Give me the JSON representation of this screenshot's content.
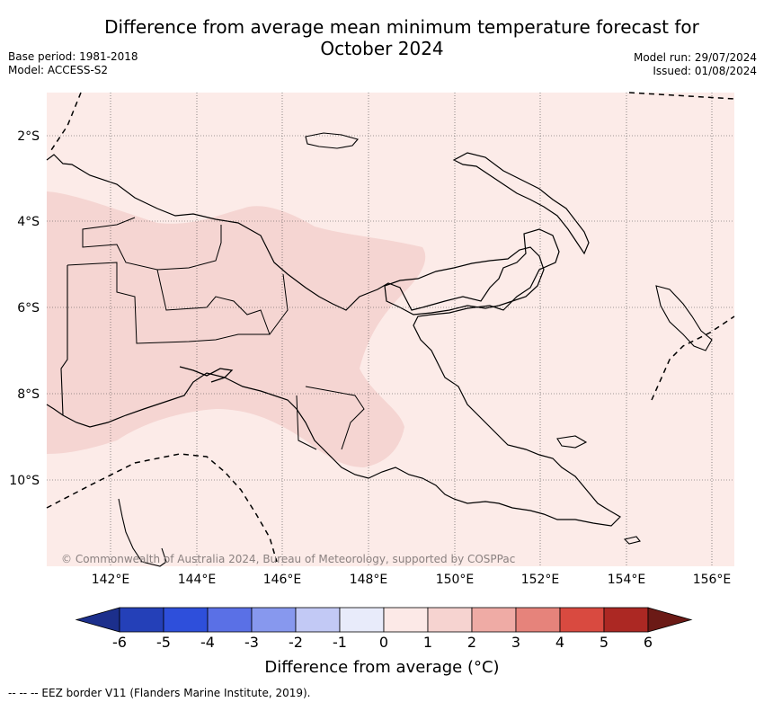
{
  "title_line1": "Difference from average mean minimum temperature forecast for",
  "title_line2": "October 2024",
  "base_period": "Base period: 1981-2018",
  "model": "Model: ACCESS-S2",
  "model_run": "Model run: 29/07/2024",
  "issued": "Issued: 01/08/2024",
  "copyright": "© Commonwealth of Australia 2024, Bureau of Meteorology, supported by COSPPac",
  "lat_labels": [
    "2°S",
    "4°S",
    "6°S",
    "8°S",
    "10°S"
  ],
  "lon_labels": [
    "142°E",
    "144°E",
    "146°E",
    "148°E",
    "150°E",
    "152°E",
    "154°E",
    "156°E"
  ],
  "colorbar": {
    "ticks": [
      "-6",
      "-5",
      "-4",
      "-3",
      "-2",
      "-1",
      "0",
      "1",
      "2",
      "3",
      "4",
      "5",
      "6"
    ],
    "colors": [
      "#1c2f8c",
      "#2440b8",
      "#2e4fdb",
      "#5a70e6",
      "#8798ee",
      "#c2c9f5",
      "#e8ebfa",
      "#fce9e7",
      "#f6d3d0",
      "#efaba5",
      "#e6837b",
      "#d94a40",
      "#ac2823",
      "#6b1a16"
    ],
    "title": "Difference from average (°C)"
  },
  "footer": "-- -- -- EEZ border V11 (Flanders Marine Institute, 2019).",
  "chart_data": {
    "type": "heatmap",
    "region": "Papua New Guinea",
    "lon_range": [
      140.5,
      156.5
    ],
    "lat_range": [
      -12,
      -1
    ],
    "dominant_anomaly_range": [
      0,
      1
    ],
    "secondary_anomaly_range": [
      1,
      2
    ],
    "secondary_region": "central New Guinea mainland"
  }
}
